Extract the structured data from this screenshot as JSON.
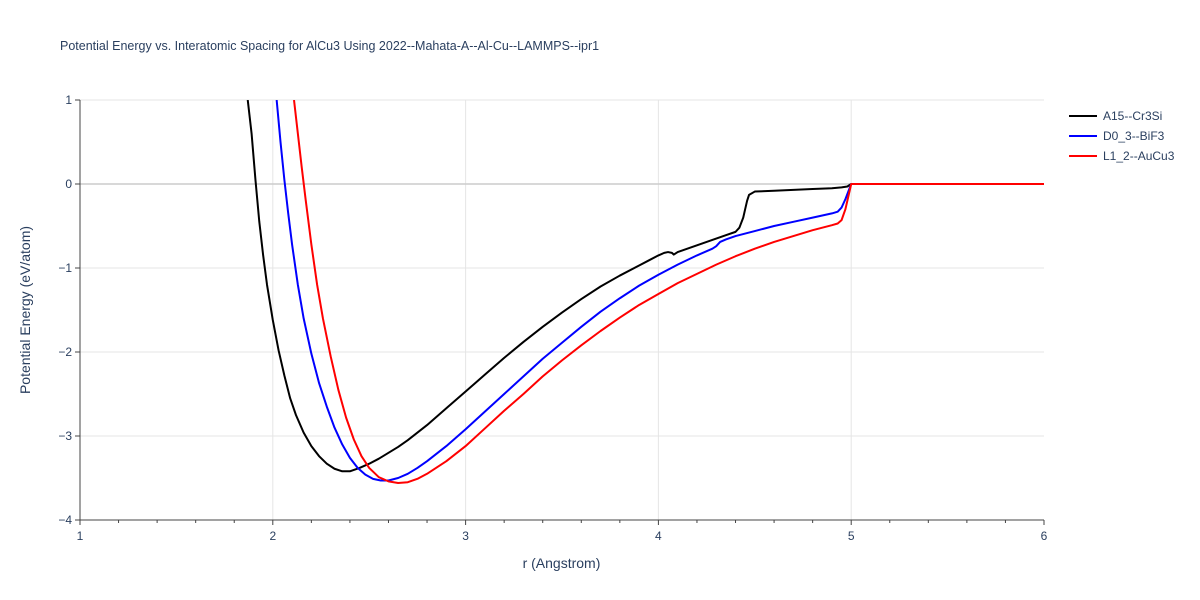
{
  "chart_data": {
    "type": "line",
    "title": "Potential Energy vs. Interatomic Spacing for AlCu3 Using 2022--Mahata-A--Al-Cu--LAMMPS--ipr1",
    "xlabel": "r (Angstrom)",
    "ylabel": "Potential Energy (eV/atom)",
    "xlim": [
      1,
      6
    ],
    "ylim": [
      -4,
      1
    ],
    "xticks": [
      1,
      2,
      3,
      4,
      5,
      6
    ],
    "xtick_labels": [
      "1",
      "2",
      "3",
      "4",
      "5",
      "6"
    ],
    "yticks": [
      1,
      0,
      -1,
      -2,
      -3,
      -4
    ],
    "ytick_labels": [
      "1",
      "0",
      "−1",
      "−2",
      "−3",
      "−4"
    ],
    "grid": true,
    "legend_position": "top-right",
    "series": [
      {
        "name": "A15--Cr3Si",
        "color": "#000000",
        "x": [
          1.87,
          1.89,
          1.91,
          1.93,
          1.95,
          1.97,
          2.0,
          2.03,
          2.06,
          2.09,
          2.12,
          2.16,
          2.2,
          2.24,
          2.28,
          2.32,
          2.36,
          2.4,
          2.45,
          2.5,
          2.55,
          2.6,
          2.65,
          2.7,
          2.8,
          2.9,
          3.0,
          3.1,
          3.2,
          3.3,
          3.4,
          3.5,
          3.6,
          3.7,
          3.8,
          3.9,
          3.95,
          4.0,
          4.03,
          4.05,
          4.07,
          4.08,
          4.1,
          4.2,
          4.3,
          4.35,
          4.4,
          4.42,
          4.44,
          4.45,
          4.46,
          4.47,
          4.5,
          4.6,
          4.7,
          4.8,
          4.9,
          4.95,
          4.98,
          5.0,
          5.5,
          6.0
        ],
        "y": [
          1.0,
          0.6,
          0.05,
          -0.45,
          -0.85,
          -1.2,
          -1.62,
          -1.98,
          -2.28,
          -2.55,
          -2.75,
          -2.96,
          -3.12,
          -3.24,
          -3.33,
          -3.39,
          -3.42,
          -3.42,
          -3.38,
          -3.33,
          -3.27,
          -3.2,
          -3.13,
          -3.05,
          -2.87,
          -2.67,
          -2.47,
          -2.27,
          -2.07,
          -1.88,
          -1.7,
          -1.53,
          -1.37,
          -1.22,
          -1.09,
          -0.97,
          -0.91,
          -0.85,
          -0.82,
          -0.81,
          -0.82,
          -0.84,
          -0.81,
          -0.73,
          -0.65,
          -0.61,
          -0.57,
          -0.52,
          -0.4,
          -0.3,
          -0.2,
          -0.13,
          -0.09,
          -0.08,
          -0.07,
          -0.06,
          -0.05,
          -0.04,
          -0.03,
          0.0,
          0.0,
          0.0
        ]
      },
      {
        "name": "D0_3--BiF3",
        "color": "#0000ff",
        "x": [
          2.02,
          2.04,
          2.06,
          2.08,
          2.1,
          2.13,
          2.16,
          2.2,
          2.24,
          2.28,
          2.32,
          2.36,
          2.4,
          2.44,
          2.48,
          2.52,
          2.56,
          2.6,
          2.65,
          2.7,
          2.75,
          2.8,
          2.9,
          3.0,
          3.1,
          3.2,
          3.3,
          3.4,
          3.5,
          3.6,
          3.7,
          3.8,
          3.9,
          4.0,
          4.1,
          4.2,
          4.28,
          4.3,
          4.32,
          4.35,
          4.4,
          4.5,
          4.6,
          4.7,
          4.8,
          4.9,
          4.93,
          4.95,
          4.97,
          5.0,
          5.5,
          6.0
        ],
        "y": [
          1.0,
          0.5,
          0.05,
          -0.35,
          -0.72,
          -1.2,
          -1.6,
          -2.02,
          -2.37,
          -2.65,
          -2.9,
          -3.1,
          -3.26,
          -3.38,
          -3.46,
          -3.51,
          -3.53,
          -3.53,
          -3.5,
          -3.45,
          -3.38,
          -3.3,
          -3.12,
          -2.92,
          -2.71,
          -2.5,
          -2.29,
          -2.08,
          -1.89,
          -1.7,
          -1.52,
          -1.36,
          -1.21,
          -1.08,
          -0.96,
          -0.85,
          -0.77,
          -0.74,
          -0.69,
          -0.66,
          -0.62,
          -0.56,
          -0.5,
          -0.45,
          -0.4,
          -0.35,
          -0.33,
          -0.28,
          -0.18,
          0.0,
          0.0,
          0.0
        ]
      },
      {
        "name": "L1_2--AuCu3",
        "color": "#ff0000",
        "x": [
          2.11,
          2.13,
          2.15,
          2.17,
          2.2,
          2.23,
          2.26,
          2.3,
          2.34,
          2.38,
          2.42,
          2.46,
          2.5,
          2.55,
          2.6,
          2.65,
          2.7,
          2.75,
          2.8,
          2.9,
          3.0,
          3.1,
          3.2,
          3.3,
          3.4,
          3.5,
          3.6,
          3.7,
          3.8,
          3.9,
          4.0,
          4.1,
          4.2,
          4.3,
          4.4,
          4.5,
          4.6,
          4.7,
          4.8,
          4.9,
          4.93,
          4.95,
          4.97,
          5.0,
          5.5,
          6.0
        ],
        "y": [
          1.0,
          0.6,
          0.2,
          -0.18,
          -0.72,
          -1.2,
          -1.6,
          -2.05,
          -2.45,
          -2.78,
          -3.04,
          -3.24,
          -3.38,
          -3.49,
          -3.54,
          -3.56,
          -3.55,
          -3.51,
          -3.45,
          -3.3,
          -3.12,
          -2.91,
          -2.7,
          -2.5,
          -2.29,
          -2.1,
          -1.92,
          -1.75,
          -1.59,
          -1.44,
          -1.31,
          -1.18,
          -1.07,
          -0.96,
          -0.86,
          -0.77,
          -0.69,
          -0.62,
          -0.55,
          -0.49,
          -0.47,
          -0.43,
          -0.3,
          0.0,
          0.0,
          0.0
        ]
      }
    ]
  }
}
